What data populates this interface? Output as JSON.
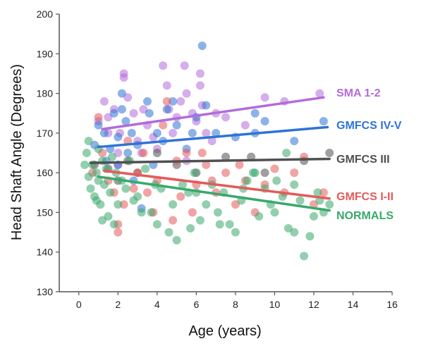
{
  "chart_data": {
    "type": "scatter",
    "title": "",
    "xlabel": "Age (years)",
    "ylabel": "Head Shaft Angle (Degrees)",
    "xlim": [
      -1,
      16
    ],
    "ylim": [
      130,
      200
    ],
    "x_ticks": [
      0,
      2,
      4,
      6,
      8,
      10,
      12,
      14,
      16
    ],
    "y_ticks": [
      130,
      140,
      150,
      160,
      170,
      180,
      190,
      200
    ],
    "grid": false,
    "legend_placement": "inline-right",
    "series": [
      {
        "name": "SMA 1-2",
        "color": "#b36bdb",
        "trend": [
          [
            1.2,
            171
          ],
          [
            12.5,
            179
          ]
        ],
        "points": [
          [
            1.0,
            173
          ],
          [
            1.3,
            178
          ],
          [
            1.5,
            170
          ],
          [
            1.8,
            176
          ],
          [
            2.0,
            165
          ],
          [
            2.1,
            170
          ],
          [
            2.3,
            185
          ],
          [
            2.3,
            184
          ],
          [
            2.5,
            179
          ],
          [
            2.8,
            175
          ],
          [
            3.0,
            168
          ],
          [
            3.3,
            176
          ],
          [
            3.5,
            172
          ],
          [
            3.8,
            169
          ],
          [
            4.0,
            166
          ],
          [
            4.3,
            187
          ],
          [
            4.5,
            182
          ],
          [
            4.6,
            176
          ],
          [
            4.8,
            170
          ],
          [
            5.0,
            174
          ],
          [
            5.2,
            178
          ],
          [
            5.4,
            187
          ],
          [
            5.5,
            180
          ],
          [
            5.8,
            175
          ],
          [
            6.0,
            173
          ],
          [
            6.2,
            185
          ],
          [
            6.2,
            182
          ],
          [
            6.3,
            177
          ],
          [
            6.5,
            170
          ],
          [
            6.8,
            168
          ],
          [
            7.0,
            175
          ],
          [
            7.5,
            174
          ],
          [
            8.5,
            172
          ],
          [
            9.5,
            179
          ],
          [
            10.5,
            178
          ],
          [
            12.3,
            180
          ],
          [
            2.0,
            162
          ],
          [
            3.2,
            165
          ],
          [
            5.5,
            163
          ],
          [
            1.5,
            174
          ]
        ]
      },
      {
        "name": "GMFCS IV-V",
        "color": "#2f73d6",
        "trend": [
          [
            1.0,
            166.5
          ],
          [
            12.7,
            171.5
          ]
        ],
        "points": [
          [
            0.8,
            167
          ],
          [
            1.0,
            172
          ],
          [
            1.3,
            170
          ],
          [
            1.6,
            166
          ],
          [
            1.8,
            175
          ],
          [
            2.0,
            169
          ],
          [
            2.2,
            180
          ],
          [
            2.4,
            173
          ],
          [
            2.5,
            165
          ],
          [
            2.7,
            170
          ],
          [
            3.0,
            167
          ],
          [
            3.2,
            151
          ],
          [
            3.5,
            178
          ],
          [
            3.6,
            175
          ],
          [
            4.0,
            170
          ],
          [
            4.3,
            168
          ],
          [
            4.5,
            176
          ],
          [
            5.0,
            172
          ],
          [
            5.5,
            166
          ],
          [
            6.0,
            174
          ],
          [
            6.3,
            192
          ],
          [
            6.5,
            177
          ],
          [
            7.0,
            170
          ],
          [
            8.0,
            169
          ],
          [
            9.0,
            175
          ],
          [
            9.0,
            170
          ],
          [
            9.5,
            173
          ],
          [
            11.0,
            168
          ],
          [
            12.5,
            173
          ],
          [
            2.0,
            162
          ],
          [
            2.8,
            158
          ],
          [
            1.4,
            163
          ],
          [
            3.8,
            162
          ],
          [
            4.8,
            178
          ],
          [
            5.8,
            170
          ],
          [
            2.2,
            176
          ]
        ]
      },
      {
        "name": "GMFCS III",
        "color": "#505050",
        "trend": [
          [
            0.6,
            162.5
          ],
          [
            12.8,
            163.5
          ]
        ],
        "points": [
          [
            0.8,
            162
          ],
          [
            1.5,
            161
          ],
          [
            2.0,
            158
          ],
          [
            2.5,
            163
          ],
          [
            3.0,
            160
          ],
          [
            4.0,
            165
          ],
          [
            5.0,
            162
          ],
          [
            6.0,
            160
          ],
          [
            7.5,
            164
          ],
          [
            8.8,
            164
          ],
          [
            9.5,
            160
          ],
          [
            11.5,
            163
          ],
          [
            12.8,
            165
          ]
        ]
      },
      {
        "name": "GMFCS I-II",
        "color": "#e45a5a",
        "trend": [
          [
            1.3,
            160.5
          ],
          [
            12.8,
            153.5
          ]
        ],
        "points": [
          [
            0.7,
            160
          ],
          [
            1.0,
            174
          ],
          [
            1.2,
            165
          ],
          [
            1.5,
            158
          ],
          [
            1.8,
            155
          ],
          [
            2.0,
            147
          ],
          [
            2.0,
            145
          ],
          [
            2.3,
            152
          ],
          [
            2.5,
            168
          ],
          [
            3.0,
            160
          ],
          [
            3.3,
            165
          ],
          [
            3.5,
            155
          ],
          [
            4.0,
            158
          ],
          [
            4.3,
            172
          ],
          [
            4.5,
            178
          ],
          [
            4.8,
            148
          ],
          [
            5.0,
            163
          ],
          [
            5.5,
            165
          ],
          [
            5.8,
            150
          ],
          [
            6.0,
            157
          ],
          [
            6.3,
            165
          ],
          [
            6.5,
            162
          ],
          [
            7.0,
            155
          ],
          [
            7.5,
            160
          ],
          [
            8.0,
            152
          ],
          [
            8.5,
            158
          ],
          [
            9.0,
            150
          ],
          [
            9.5,
            157
          ],
          [
            10.0,
            161
          ],
          [
            10.5,
            155
          ],
          [
            11.0,
            160
          ],
          [
            11.5,
            164
          ],
          [
            12.0,
            152
          ],
          [
            12.5,
            155
          ],
          [
            2.8,
            156
          ],
          [
            3.8,
            150
          ],
          [
            5.2,
            154
          ],
          [
            6.8,
            158
          ],
          [
            8.2,
            162
          ]
        ]
      },
      {
        "name": "NORMALS",
        "color": "#3aa86b",
        "trend": [
          [
            1.0,
            159
          ],
          [
            12.8,
            150.5
          ]
        ],
        "points": [
          [
            0.3,
            162
          ],
          [
            0.4,
            165
          ],
          [
            0.5,
            159
          ],
          [
            0.5,
            168
          ],
          [
            0.6,
            156
          ],
          [
            0.7,
            162
          ],
          [
            0.8,
            154
          ],
          [
            0.9,
            160
          ],
          [
            1.0,
            166
          ],
          [
            1.0,
            158
          ],
          [
            1.1,
            152
          ],
          [
            1.2,
            163
          ],
          [
            1.3,
            157
          ],
          [
            1.4,
            161
          ],
          [
            1.5,
            149
          ],
          [
            1.6,
            155
          ],
          [
            1.7,
            164
          ],
          [
            1.8,
            147
          ],
          [
            2.0,
            152
          ],
          [
            2.2,
            158
          ],
          [
            2.4,
            156
          ],
          [
            2.6,
            163
          ],
          [
            3.0,
            154
          ],
          [
            3.2,
            150
          ],
          [
            3.4,
            161
          ],
          [
            3.7,
            150
          ],
          [
            4.0,
            147
          ],
          [
            4.2,
            156
          ],
          [
            4.6,
            145
          ],
          [
            5.0,
            143
          ],
          [
            5.3,
            157
          ],
          [
            5.6,
            155
          ],
          [
            5.9,
            160
          ],
          [
            6.2,
            148
          ],
          [
            6.5,
            152
          ],
          [
            6.8,
            157
          ],
          [
            7.1,
            150
          ],
          [
            7.4,
            155
          ],
          [
            7.7,
            147
          ],
          [
            8.0,
            145
          ],
          [
            8.3,
            153
          ],
          [
            8.6,
            158
          ],
          [
            8.9,
            160
          ],
          [
            9.2,
            149
          ],
          [
            9.5,
            156
          ],
          [
            9.8,
            152
          ],
          [
            10.1,
            158
          ],
          [
            10.4,
            154
          ],
          [
            10.7,
            146
          ],
          [
            11.0,
            145
          ],
          [
            11.3,
            153
          ],
          [
            11.5,
            139
          ],
          [
            11.8,
            144
          ],
          [
            12.0,
            149
          ],
          [
            12.2,
            155
          ],
          [
            12.5,
            150
          ],
          [
            12.8,
            152
          ],
          [
            1.2,
            148
          ],
          [
            2.8,
            153
          ],
          [
            4.8,
            152
          ],
          [
            6.0,
            155
          ],
          [
            7.2,
            147
          ],
          [
            9.0,
            160
          ],
          [
            10.0,
            150
          ],
          [
            11.0,
            157
          ],
          [
            12.3,
            153
          ],
          [
            0.9,
            153
          ],
          [
            1.9,
            160
          ],
          [
            3.9,
            157
          ],
          [
            5.7,
            146
          ],
          [
            8.4,
            156
          ],
          [
            10.6,
            165
          ]
        ]
      }
    ]
  }
}
